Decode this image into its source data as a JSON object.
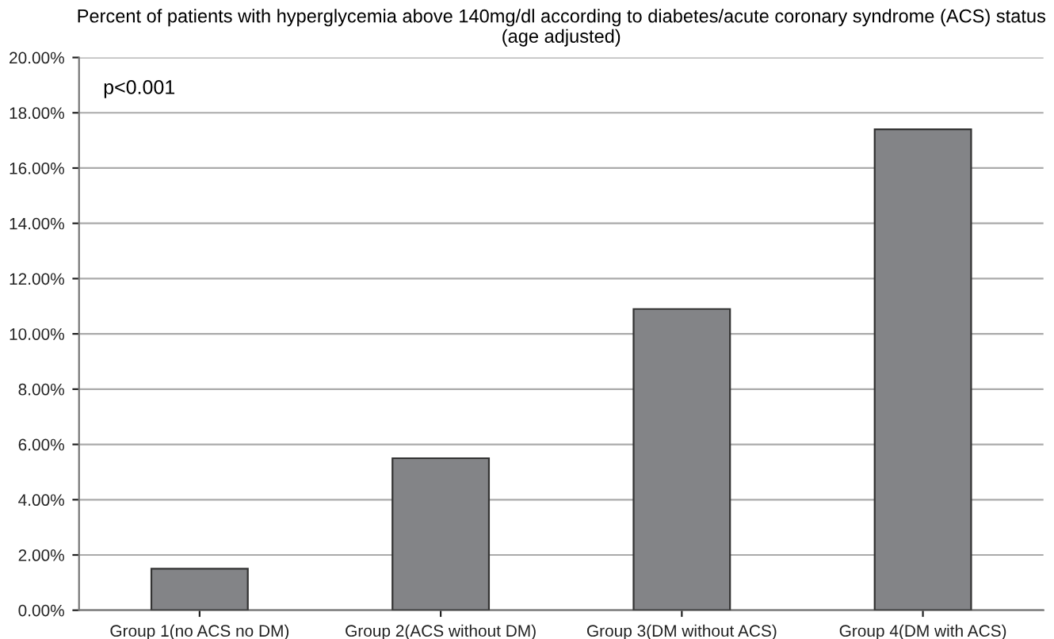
{
  "chart_data": {
    "type": "bar",
    "title": "Percent of patients with hyperglycemia above 140mg/dl according to diabetes/acute coronary syndrome (ACS) status (age adjusted)",
    "categories": [
      "Group 1(no ACS no DM)",
      "Group 2(ACS without DM)",
      "Group 3(DM without ACS)",
      "Group 4(DM with ACS)"
    ],
    "values": [
      1.5,
      5.5,
      10.9,
      17.4
    ],
    "color": "#838487",
    "ylim": [
      0,
      20
    ],
    "yticks": [
      {
        "value": 0,
        "label": "0.00%"
      },
      {
        "value": 2,
        "label": "2.00%"
      },
      {
        "value": 4,
        "label": "4.00%"
      },
      {
        "value": 6,
        "label": "6.00%"
      },
      {
        "value": 8,
        "label": "8.00%"
      },
      {
        "value": 10,
        "label": "10.00%"
      },
      {
        "value": 12,
        "label": "12.00%"
      },
      {
        "value": 14,
        "label": "14.00%"
      },
      {
        "value": 16,
        "label": "16.00%"
      },
      {
        "value": 18,
        "label": "18.00%"
      },
      {
        "value": 20,
        "label": "20.00%"
      }
    ],
    "grid": "y",
    "legend": false,
    "annotations": [
      "p<0.001"
    ]
  }
}
